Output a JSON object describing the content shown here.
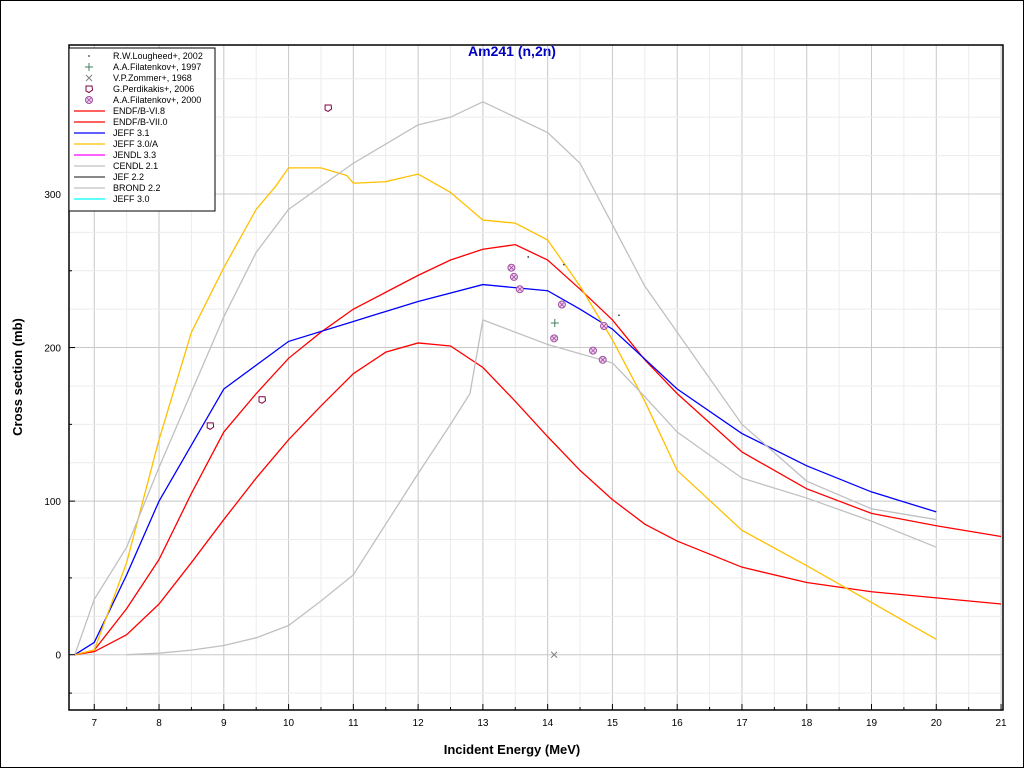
{
  "chart_data": {
    "type": "line",
    "title": "Am241 (n,2n)",
    "xlabel": "Incident Energy (MeV)",
    "ylabel": "Cross section (mb)",
    "xlim": [
      6.61,
      21.03
    ],
    "ylim": [
      -36,
      397
    ],
    "xticks": [
      7,
      8,
      9,
      10,
      11,
      12,
      13,
      14,
      15,
      16,
      17,
      18,
      19,
      20,
      21
    ],
    "yticks": [
      0,
      100,
      200,
      300
    ],
    "grid": true,
    "legend_position": "top-left",
    "title_color": "#0000c0",
    "points": [
      {
        "name": "R.W.Lougheed+, 2002",
        "marker": "dot",
        "color": "#404040",
        "x": [
          13.7,
          14.25,
          15.1
        ],
        "y": [
          259,
          254,
          221
        ]
      },
      {
        "name": "A.A.Filatenkov+, 1997",
        "marker": "plus",
        "color": "#408060",
        "x": [
          14.11
        ],
        "y": [
          216
        ]
      },
      {
        "name": "V.P.Zommer+, 1968",
        "marker": "x",
        "color": "#808080",
        "x": [
          14.1
        ],
        "y": [
          0
        ]
      },
      {
        "name": "G.Perdikakis+, 2006",
        "marker": "pentagon",
        "color": "#800040",
        "x": [
          8.79,
          9.59,
          10.61
        ],
        "y": [
          149,
          166,
          356
        ]
      },
      {
        "name": "A.A.Filatenkov+, 2000",
        "marker": "circle-x",
        "color": "#a050a0",
        "x": [
          13.44,
          13.48,
          13.57,
          14.22,
          14.1,
          14.87,
          14.7,
          14.85
        ],
        "y": [
          252,
          246,
          238,
          228,
          206,
          214,
          198,
          192
        ]
      }
    ],
    "series": [
      {
        "name": "ENDF/B-VI.8",
        "color": "#ff0000",
        "x": [
          6.7,
          7,
          7.5,
          8,
          8.5,
          9,
          9.5,
          10,
          10.5,
          11,
          11.5,
          12,
          12.5,
          13,
          13.5,
          14,
          14.5,
          15,
          15.5,
          16,
          17,
          18,
          19,
          20,
          21
        ],
        "y": [
          0,
          3,
          30,
          62,
          105,
          145,
          170,
          193,
          210,
          225,
          236,
          247,
          257,
          264,
          267,
          257,
          238,
          218,
          192,
          170,
          132,
          108,
          92,
          84,
          77
        ]
      },
      {
        "name": "ENDF/B-VII.0",
        "color": "#ff0000",
        "x": [
          6.7,
          7,
          7.5,
          8,
          8.5,
          9,
          9.5,
          10,
          10.5,
          11,
          11.5,
          12,
          12.5,
          13,
          13.5,
          14,
          14.5,
          15,
          15.5,
          16,
          17,
          18,
          19,
          20,
          21
        ],
        "y": [
          0,
          2,
          13,
          33,
          60,
          88,
          115,
          140,
          162,
          183,
          197,
          203,
          201,
          187,
          165,
          142,
          120,
          101,
          85,
          74,
          57,
          47,
          41,
          37,
          33
        ]
      },
      {
        "name": "JEFF 3.1",
        "color": "#0000ff",
        "x": [
          6.7,
          7,
          7.5,
          8,
          9,
          10,
          11,
          12,
          13,
          14,
          14.5,
          15,
          16,
          17,
          18,
          19,
          20
        ],
        "y": [
          0,
          8,
          52,
          100,
          173,
          204,
          217,
          230,
          241,
          237,
          225,
          212,
          173,
          144,
          123,
          106,
          93
        ]
      },
      {
        "name": "JEFF 3.0/A",
        "color": "#ffc000",
        "x": [
          6.7,
          7,
          7.5,
          8,
          8.5,
          9,
          9.5,
          9.8,
          10,
          10.5,
          10.9,
          11,
          11.5,
          12,
          12.5,
          13,
          13.5,
          14,
          14.5,
          15,
          15.5,
          16,
          17,
          18,
          19,
          20
        ],
        "y": [
          0,
          3,
          60,
          140,
          210,
          252,
          290,
          305,
          317,
          317,
          312,
          307,
          308,
          313,
          301,
          283,
          281,
          270,
          240,
          205,
          165,
          120,
          81,
          58,
          34,
          10
        ]
      },
      {
        "name": "JENDL 3.3",
        "color": "#ff00ff",
        "x": [],
        "y": []
      },
      {
        "name": "CENDL 2.1",
        "color": "#c0c0c0",
        "x": [
          6.7,
          7,
          7.5,
          8,
          9,
          9.5,
          10,
          11,
          12,
          12.5,
          13,
          14,
          14.5,
          15,
          15.5,
          16,
          17,
          18,
          19,
          20
        ],
        "y": [
          0,
          36,
          70,
          122,
          220,
          262,
          290,
          320,
          345,
          350,
          360,
          340,
          320,
          280,
          240,
          210,
          150,
          113,
          95,
          88
        ]
      },
      {
        "name": "JEF 2.2",
        "color": "#404040",
        "x": [],
        "y": []
      },
      {
        "name": "BROND 2.2",
        "color": "#c0c0c0",
        "x": [
          7.5,
          8,
          8.5,
          9,
          9.5,
          10,
          10.5,
          11,
          11.5,
          12,
          12.5,
          12.8,
          13,
          14,
          15,
          15.5,
          16,
          17,
          18,
          19,
          20
        ],
        "y": [
          0,
          1,
          3,
          6,
          11,
          19,
          35,
          52,
          85,
          118,
          150,
          170,
          218,
          202,
          190,
          168,
          145,
          115,
          102,
          87,
          70
        ]
      },
      {
        "name": "JEFF 3.0",
        "color": "#00ffff",
        "x": [],
        "y": []
      }
    ]
  }
}
